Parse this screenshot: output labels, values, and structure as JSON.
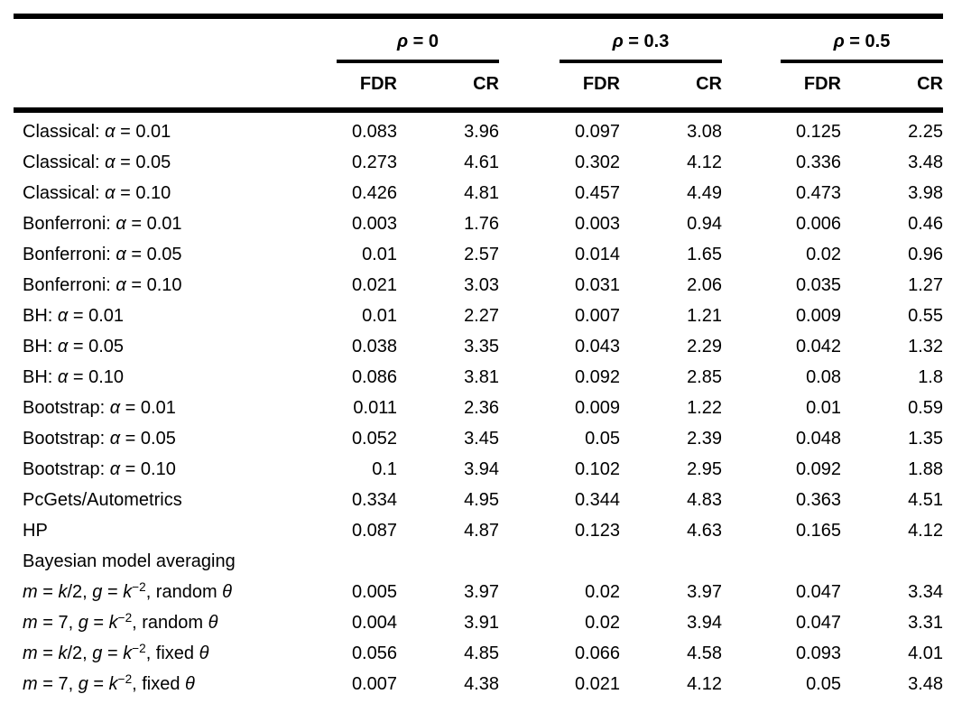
{
  "page": {
    "background": "#ffffff",
    "text_color": "#000000",
    "rule_color": "#000000"
  },
  "table": {
    "groups": [
      {
        "label": [
          [
            "ρ",
            "i"
          ],
          [
            " = 0",
            ""
          ]
        ]
      },
      {
        "label": [
          [
            "ρ",
            "i"
          ],
          [
            " = 0.3",
            ""
          ]
        ]
      },
      {
        "label": [
          [
            "ρ",
            "i"
          ],
          [
            " = 0.5",
            ""
          ]
        ]
      }
    ],
    "sub_headers": [
      "FDR",
      "CR",
      "FDR",
      "CR",
      "FDR",
      "CR"
    ],
    "rows": [
      {
        "label": [
          [
            "Classical: ",
            ""
          ],
          [
            "α",
            "i"
          ],
          [
            " = 0.01",
            ""
          ]
        ],
        "values": [
          "0.083",
          "3.96",
          "0.097",
          "3.08",
          "0.125",
          "2.25"
        ]
      },
      {
        "label": [
          [
            "Classical: ",
            ""
          ],
          [
            "α",
            "i"
          ],
          [
            " = 0.05",
            ""
          ]
        ],
        "values": [
          "0.273",
          "4.61",
          "0.302",
          "4.12",
          "0.336",
          "3.48"
        ]
      },
      {
        "label": [
          [
            "Classical: ",
            ""
          ],
          [
            "α",
            "i"
          ],
          [
            " = 0.10",
            ""
          ]
        ],
        "values": [
          "0.426",
          "4.81",
          "0.457",
          "4.49",
          "0.473",
          "3.98"
        ]
      },
      {
        "label": [
          [
            "Bonferroni: ",
            ""
          ],
          [
            "α",
            "i"
          ],
          [
            " = 0.01",
            ""
          ]
        ],
        "values": [
          "0.003",
          "1.76",
          "0.003",
          "0.94",
          "0.006",
          "0.46"
        ]
      },
      {
        "label": [
          [
            "Bonferroni: ",
            ""
          ],
          [
            "α",
            "i"
          ],
          [
            " = 0.05",
            ""
          ]
        ],
        "values": [
          "0.01",
          "2.57",
          "0.014",
          "1.65",
          "0.02",
          "0.96"
        ]
      },
      {
        "label": [
          [
            "Bonferroni: ",
            ""
          ],
          [
            "α",
            "i"
          ],
          [
            " = 0.10",
            ""
          ]
        ],
        "values": [
          "0.021",
          "3.03",
          "0.031",
          "2.06",
          "0.035",
          "1.27"
        ]
      },
      {
        "label": [
          [
            "BH: ",
            ""
          ],
          [
            "α",
            "i"
          ],
          [
            " = 0.01",
            ""
          ]
        ],
        "values": [
          "0.01",
          "2.27",
          "0.007",
          "1.21",
          "0.009",
          "0.55"
        ]
      },
      {
        "label": [
          [
            "BH: ",
            ""
          ],
          [
            "α",
            "i"
          ],
          [
            " = 0.05",
            ""
          ]
        ],
        "values": [
          "0.038",
          "3.35",
          "0.043",
          "2.29",
          "0.042",
          "1.32"
        ]
      },
      {
        "label": [
          [
            "BH: ",
            ""
          ],
          [
            "α",
            "i"
          ],
          [
            " = 0.10",
            ""
          ]
        ],
        "values": [
          "0.086",
          "3.81",
          "0.092",
          "2.85",
          "0.08",
          "1.8"
        ]
      },
      {
        "label": [
          [
            "Bootstrap: ",
            ""
          ],
          [
            "α",
            "i"
          ],
          [
            " = 0.01",
            ""
          ]
        ],
        "values": [
          "0.011",
          "2.36",
          "0.009",
          "1.22",
          "0.01",
          "0.59"
        ]
      },
      {
        "label": [
          [
            "Bootstrap: ",
            ""
          ],
          [
            "α",
            "i"
          ],
          [
            " = 0.05",
            ""
          ]
        ],
        "values": [
          "0.052",
          "3.45",
          "0.05",
          "2.39",
          "0.048",
          "1.35"
        ]
      },
      {
        "label": [
          [
            "Bootstrap: ",
            ""
          ],
          [
            "α",
            "i"
          ],
          [
            " = 0.10",
            ""
          ]
        ],
        "values": [
          "0.1",
          "3.94",
          "0.102",
          "2.95",
          "0.092",
          "1.88"
        ]
      },
      {
        "label": [
          [
            "PcGets/Autometrics",
            ""
          ]
        ],
        "values": [
          "0.334",
          "4.95",
          "0.344",
          "4.83",
          "0.363",
          "4.51"
        ]
      },
      {
        "label": [
          [
            "HP",
            ""
          ]
        ],
        "values": [
          "0.087",
          "4.87",
          "0.123",
          "4.63",
          "0.165",
          "4.12"
        ]
      },
      {
        "label": [
          [
            "Bayesian model averaging",
            ""
          ]
        ],
        "values": [
          "",
          "",
          "",
          "",
          "",
          ""
        ],
        "section": true
      },
      {
        "label": [
          [
            "m",
            "i"
          ],
          [
            " = ",
            ""
          ],
          [
            "k",
            "i"
          ],
          [
            "/2, ",
            ""
          ],
          [
            "g",
            "i"
          ],
          [
            " = ",
            ""
          ],
          [
            "k",
            "i"
          ],
          [
            "−2",
            "sup"
          ],
          [
            ", random ",
            ""
          ],
          [
            "θ",
            "i"
          ]
        ],
        "values": [
          "0.005",
          "3.97",
          "0.02",
          "3.97",
          "0.047",
          "3.34"
        ]
      },
      {
        "label": [
          [
            "m",
            "i"
          ],
          [
            " = 7, ",
            ""
          ],
          [
            "g",
            "i"
          ],
          [
            " = ",
            ""
          ],
          [
            "k",
            "i"
          ],
          [
            "−2",
            "sup"
          ],
          [
            ", random ",
            ""
          ],
          [
            "θ",
            "i"
          ]
        ],
        "values": [
          "0.004",
          "3.91",
          "0.02",
          "3.94",
          "0.047",
          "3.31"
        ]
      },
      {
        "label": [
          [
            "m",
            "i"
          ],
          [
            " = ",
            ""
          ],
          [
            "k",
            "i"
          ],
          [
            "/2, ",
            ""
          ],
          [
            "g",
            "i"
          ],
          [
            " = ",
            ""
          ],
          [
            "k",
            "i"
          ],
          [
            "−2",
            "sup"
          ],
          [
            ", fixed ",
            ""
          ],
          [
            "θ",
            "i"
          ]
        ],
        "values": [
          "0.056",
          "4.85",
          "0.066",
          "4.58",
          "0.093",
          "4.01"
        ]
      },
      {
        "label": [
          [
            "m",
            "i"
          ],
          [
            " = 7, ",
            ""
          ],
          [
            "g",
            "i"
          ],
          [
            " = ",
            ""
          ],
          [
            "k",
            "i"
          ],
          [
            "−2",
            "sup"
          ],
          [
            ", fixed ",
            ""
          ],
          [
            "θ",
            "i"
          ]
        ],
        "values": [
          "0.007",
          "4.38",
          "0.021",
          "4.12",
          "0.05",
          "3.48"
        ]
      }
    ]
  }
}
